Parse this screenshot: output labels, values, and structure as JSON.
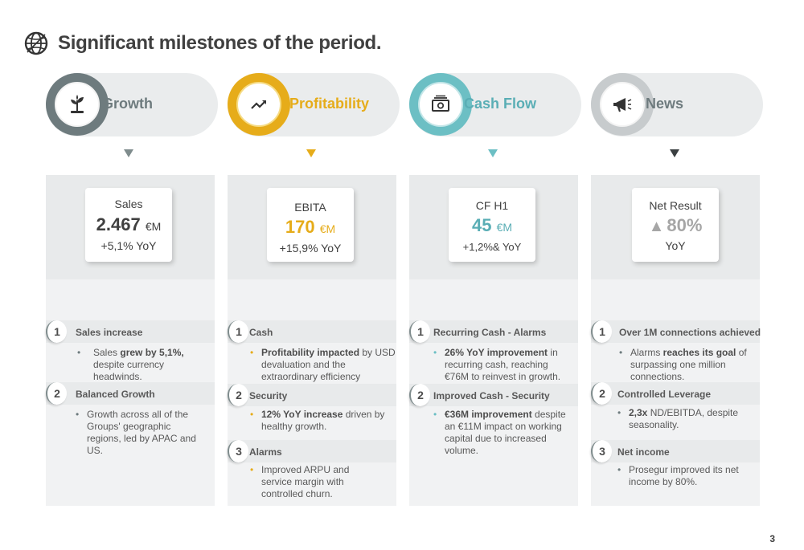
{
  "title": "Significant milestones of the period.",
  "page_number": "3",
  "colors": {
    "growth": "#6e7b7e",
    "profitability": "#e6ac1a",
    "cashflow": "#6cbfc4",
    "news": "#c7cbcd",
    "news_arrow": "#3a3f41"
  },
  "columns": [
    {
      "header": "Growth",
      "icon": "plant-icon",
      "kpi": {
        "label": "Sales",
        "value": "2.467",
        "unit": "€M",
        "sub": "+5,1% YoY"
      },
      "items": [
        {
          "num": "1",
          "title": "Sales increase",
          "bullet": [
            "Sales ",
            "grew by 5,1%,",
            " despite currency headwinds."
          ]
        },
        {
          "num": "2",
          "title": "Balanced Growth",
          "bullet": [
            "Growth across all of the Groups' geographic regions, led by APAC and US.",
            "",
            ""
          ]
        }
      ]
    },
    {
      "header": "Profitability",
      "icon": "trend-up-icon",
      "kpi": {
        "label": "EBITA",
        "value": "170",
        "unit": "€M",
        "sub": "+15,9% YoY"
      },
      "items": [
        {
          "num": "1",
          "title": "Cash",
          "bullet": [
            "",
            "Profitability impacted",
            " by USD devaluation and the extraordinary efficiency program."
          ]
        },
        {
          "num": "2",
          "title": "Security",
          "bullet": [
            "",
            "12% YoY increase",
            " driven by healthy growth."
          ]
        },
        {
          "num": "3",
          "title": "Alarms",
          "bullet": [
            "Improved ARPU and service margin with controlled churn.",
            "",
            ""
          ]
        }
      ]
    },
    {
      "header": "Cash Flow",
      "icon": "cash-icon",
      "kpi": {
        "label": "CF H1",
        "value": "45",
        "unit": "€M",
        "sub": "+1,2%& YoY"
      },
      "items": [
        {
          "num": "1",
          "title": "Recurring Cash - Alarms",
          "bullet": [
            "",
            "26% YoY improvement",
            " in recurring cash, reaching €76M to reinvest in growth."
          ]
        },
        {
          "num": "2",
          "title": "Improved Cash - Security",
          "bullet": [
            "",
            "€36M improvement",
            " despite an €11M impact on working capital due to increased volume."
          ]
        }
      ]
    },
    {
      "header": "News",
      "icon": "megaphone-icon",
      "kpi": {
        "label": "Net Result",
        "arrow": "▲",
        "value": "80%",
        "unit": "",
        "sub": "YoY"
      },
      "items": [
        {
          "num": "1",
          "title": "Over 1M connections achieved",
          "bullet": [
            "Alarms ",
            "reaches its goal",
            " of surpassing one million connections."
          ]
        },
        {
          "num": "2",
          "title": "Controlled Leverage",
          "bullet": [
            "",
            "2,3x",
            " ND/EBITDA, despite seasonality."
          ]
        },
        {
          "num": "3",
          "title": "Net income",
          "bullet": [
            "Prosegur improved its net income by 80%.",
            "",
            ""
          ]
        }
      ]
    }
  ]
}
